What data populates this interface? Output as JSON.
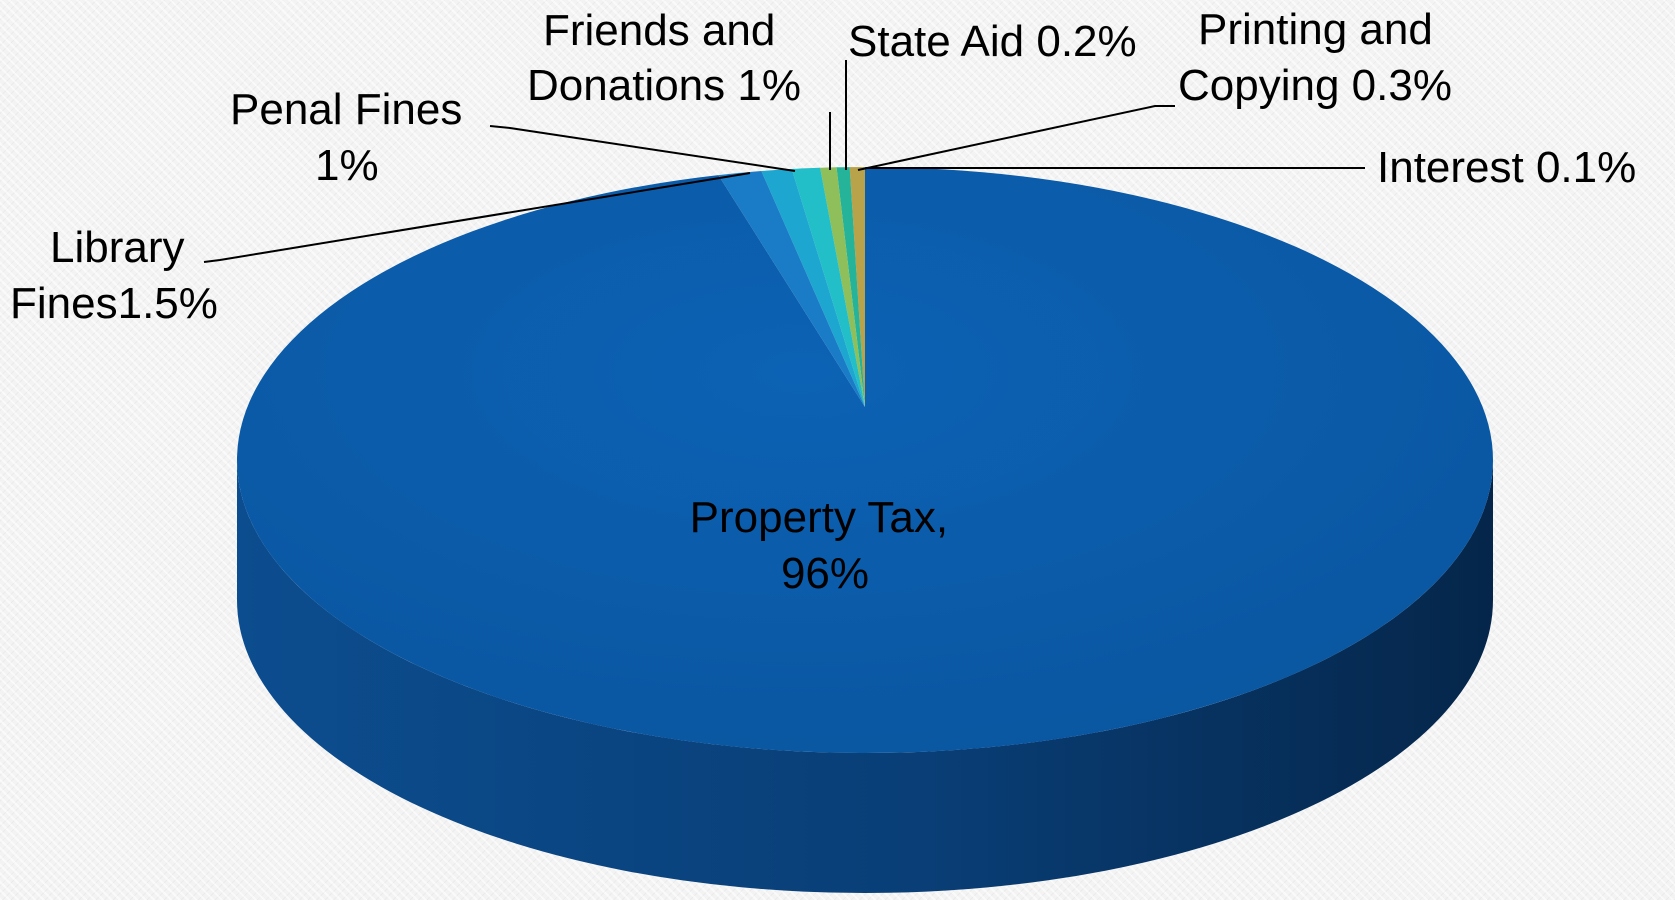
{
  "chart_data": {
    "type": "pie",
    "style": "3d",
    "categories": [
      "Property Tax",
      "Library Fines",
      "Penal Fines",
      "Friends and Donations",
      "State Aid",
      "Printing and Copying",
      "Interest"
    ],
    "values": [
      96,
      1.5,
      1,
      1,
      0.2,
      0.3,
      0.1
    ],
    "colors": [
      "#0b5aa8",
      "#1a7bc6",
      "#1da7d0",
      "#22bfc9",
      "#25b39a",
      "#8fbf5a",
      "#b8a24a"
    ],
    "labels": {
      "property_tax": [
        "Property Tax,",
        "96%"
      ],
      "library_fines": [
        "Library",
        "Fines1.5%"
      ],
      "penal_fines": [
        "Penal Fines",
        "1%"
      ],
      "friends": [
        "Friends  and",
        "Donations 1%"
      ],
      "state_aid": [
        "State Aid 0.2%"
      ],
      "printing": [
        "Printing and",
        "Copying 0.3%"
      ],
      "interest": [
        "Interest 0.1%"
      ]
    }
  }
}
